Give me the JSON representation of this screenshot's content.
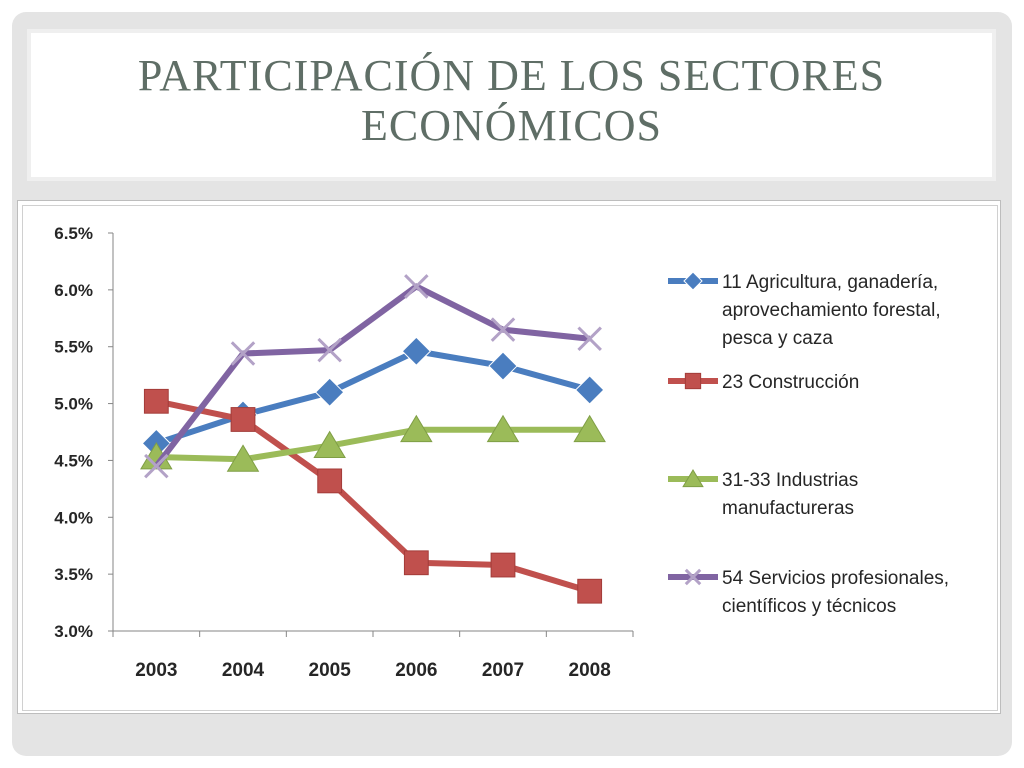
{
  "slide": {
    "title_line1": "PARTICIPACIÓN DE LOS SECTORES",
    "title_line2": "ECONÓMICOS"
  },
  "chart_data": {
    "type": "line",
    "categories": [
      "2003",
      "2004",
      "2005",
      "2006",
      "2007",
      "2008"
    ],
    "ylim": [
      0.03,
      0.065
    ],
    "yticks": [
      "3.0%",
      "3.5%",
      "4.0%",
      "4.5%",
      "5.0%",
      "5.5%",
      "6.0%",
      "6.5%"
    ],
    "ytick_values": [
      0.03,
      0.035,
      0.04,
      0.045,
      0.05,
      0.055,
      0.06,
      0.065
    ],
    "grid": false,
    "legend_position": "right",
    "series": [
      {
        "legend_lines": [
          "11 Agricultura, ganadería,",
          "aprovechamiento forestal,",
          "pesca y caza"
        ],
        "marker": "diamond",
        "color": "#4a7dbf",
        "values": [
          0.0465,
          0.049,
          0.051,
          0.0546,
          0.0533,
          0.0512
        ]
      },
      {
        "legend_lines": [
          "23 Construcción"
        ],
        "marker": "square",
        "color": "#c0504d",
        "values": [
          0.0502,
          0.0486,
          0.0432,
          0.036,
          0.0358,
          0.0335
        ]
      },
      {
        "legend_lines": [
          "31-33 Industrias",
          "manufactureras"
        ],
        "marker": "triangle",
        "color": "#9bbb59",
        "values": [
          0.0453,
          0.0451,
          0.0463,
          0.0477,
          0.0477,
          0.0477
        ]
      },
      {
        "legend_lines": [
          "54 Servicios profesionales,",
          "científicos y técnicos"
        ],
        "marker": "x",
        "color": "#8064a2",
        "values": [
          0.0445,
          0.0544,
          0.0547,
          0.0603,
          0.0565,
          0.0557
        ]
      }
    ]
  }
}
